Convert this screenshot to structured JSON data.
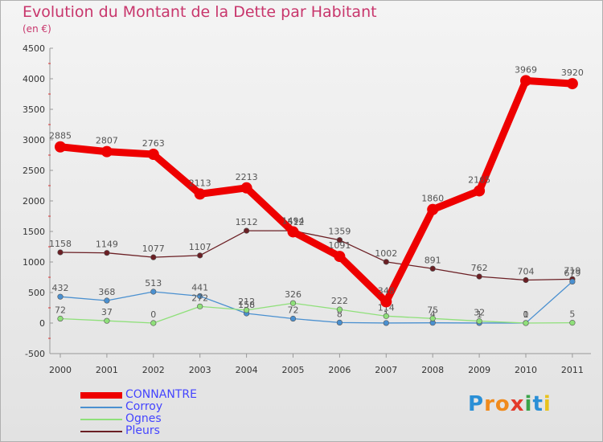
{
  "header": {
    "title": "Evolution du Montant de la Dette par Habitant",
    "subtitle": "(en €)"
  },
  "logo": {
    "letters": [
      "P",
      "r",
      "o",
      "x",
      "i",
      "t",
      "i"
    ]
  },
  "chart_data": {
    "type": "line",
    "title": "Evolution du Montant de la Dette par Habitant",
    "subtitle": "(en €)",
    "x": [
      "2000",
      "2001",
      "2002",
      "2003",
      "2004",
      "2005",
      "2006",
      "2007",
      "2008",
      "2009",
      "2010",
      "2011"
    ],
    "ylim": [
      -500,
      4500
    ],
    "yticks": [
      -500,
      0,
      500,
      1000,
      1500,
      2000,
      2500,
      3000,
      3500,
      4000,
      4500
    ],
    "grid": false,
    "legend_position": "bottom-left",
    "series": [
      {
        "name": "Pleurs",
        "color": "#6b1f24",
        "values": [
          1158,
          1149,
          1077,
          1107,
          1512,
          1512,
          1359,
          1002,
          891,
          762,
          704,
          719
        ]
      },
      {
        "name": "Corroy",
        "color": "#4a90d0",
        "values": [
          432,
          368,
          513,
          441,
          158,
          72,
          8,
          1,
          4,
          1,
          1,
          679
        ]
      },
      {
        "name": "Ognes",
        "color": "#8fe07a",
        "values": [
          72,
          37,
          0,
          272,
          212,
          326,
          222,
          114,
          75,
          32,
          0,
          5
        ]
      },
      {
        "name": "CONNANTRE",
        "color": "#ee0000",
        "values": [
          2885,
          2807,
          2763,
          2113,
          2213,
          1494,
          1091,
          348,
          1860,
          2165,
          3969,
          3920
        ]
      }
    ],
    "legend": [
      "CONNANTRE",
      "Corroy",
      "Ognes",
      "Pleurs"
    ]
  }
}
